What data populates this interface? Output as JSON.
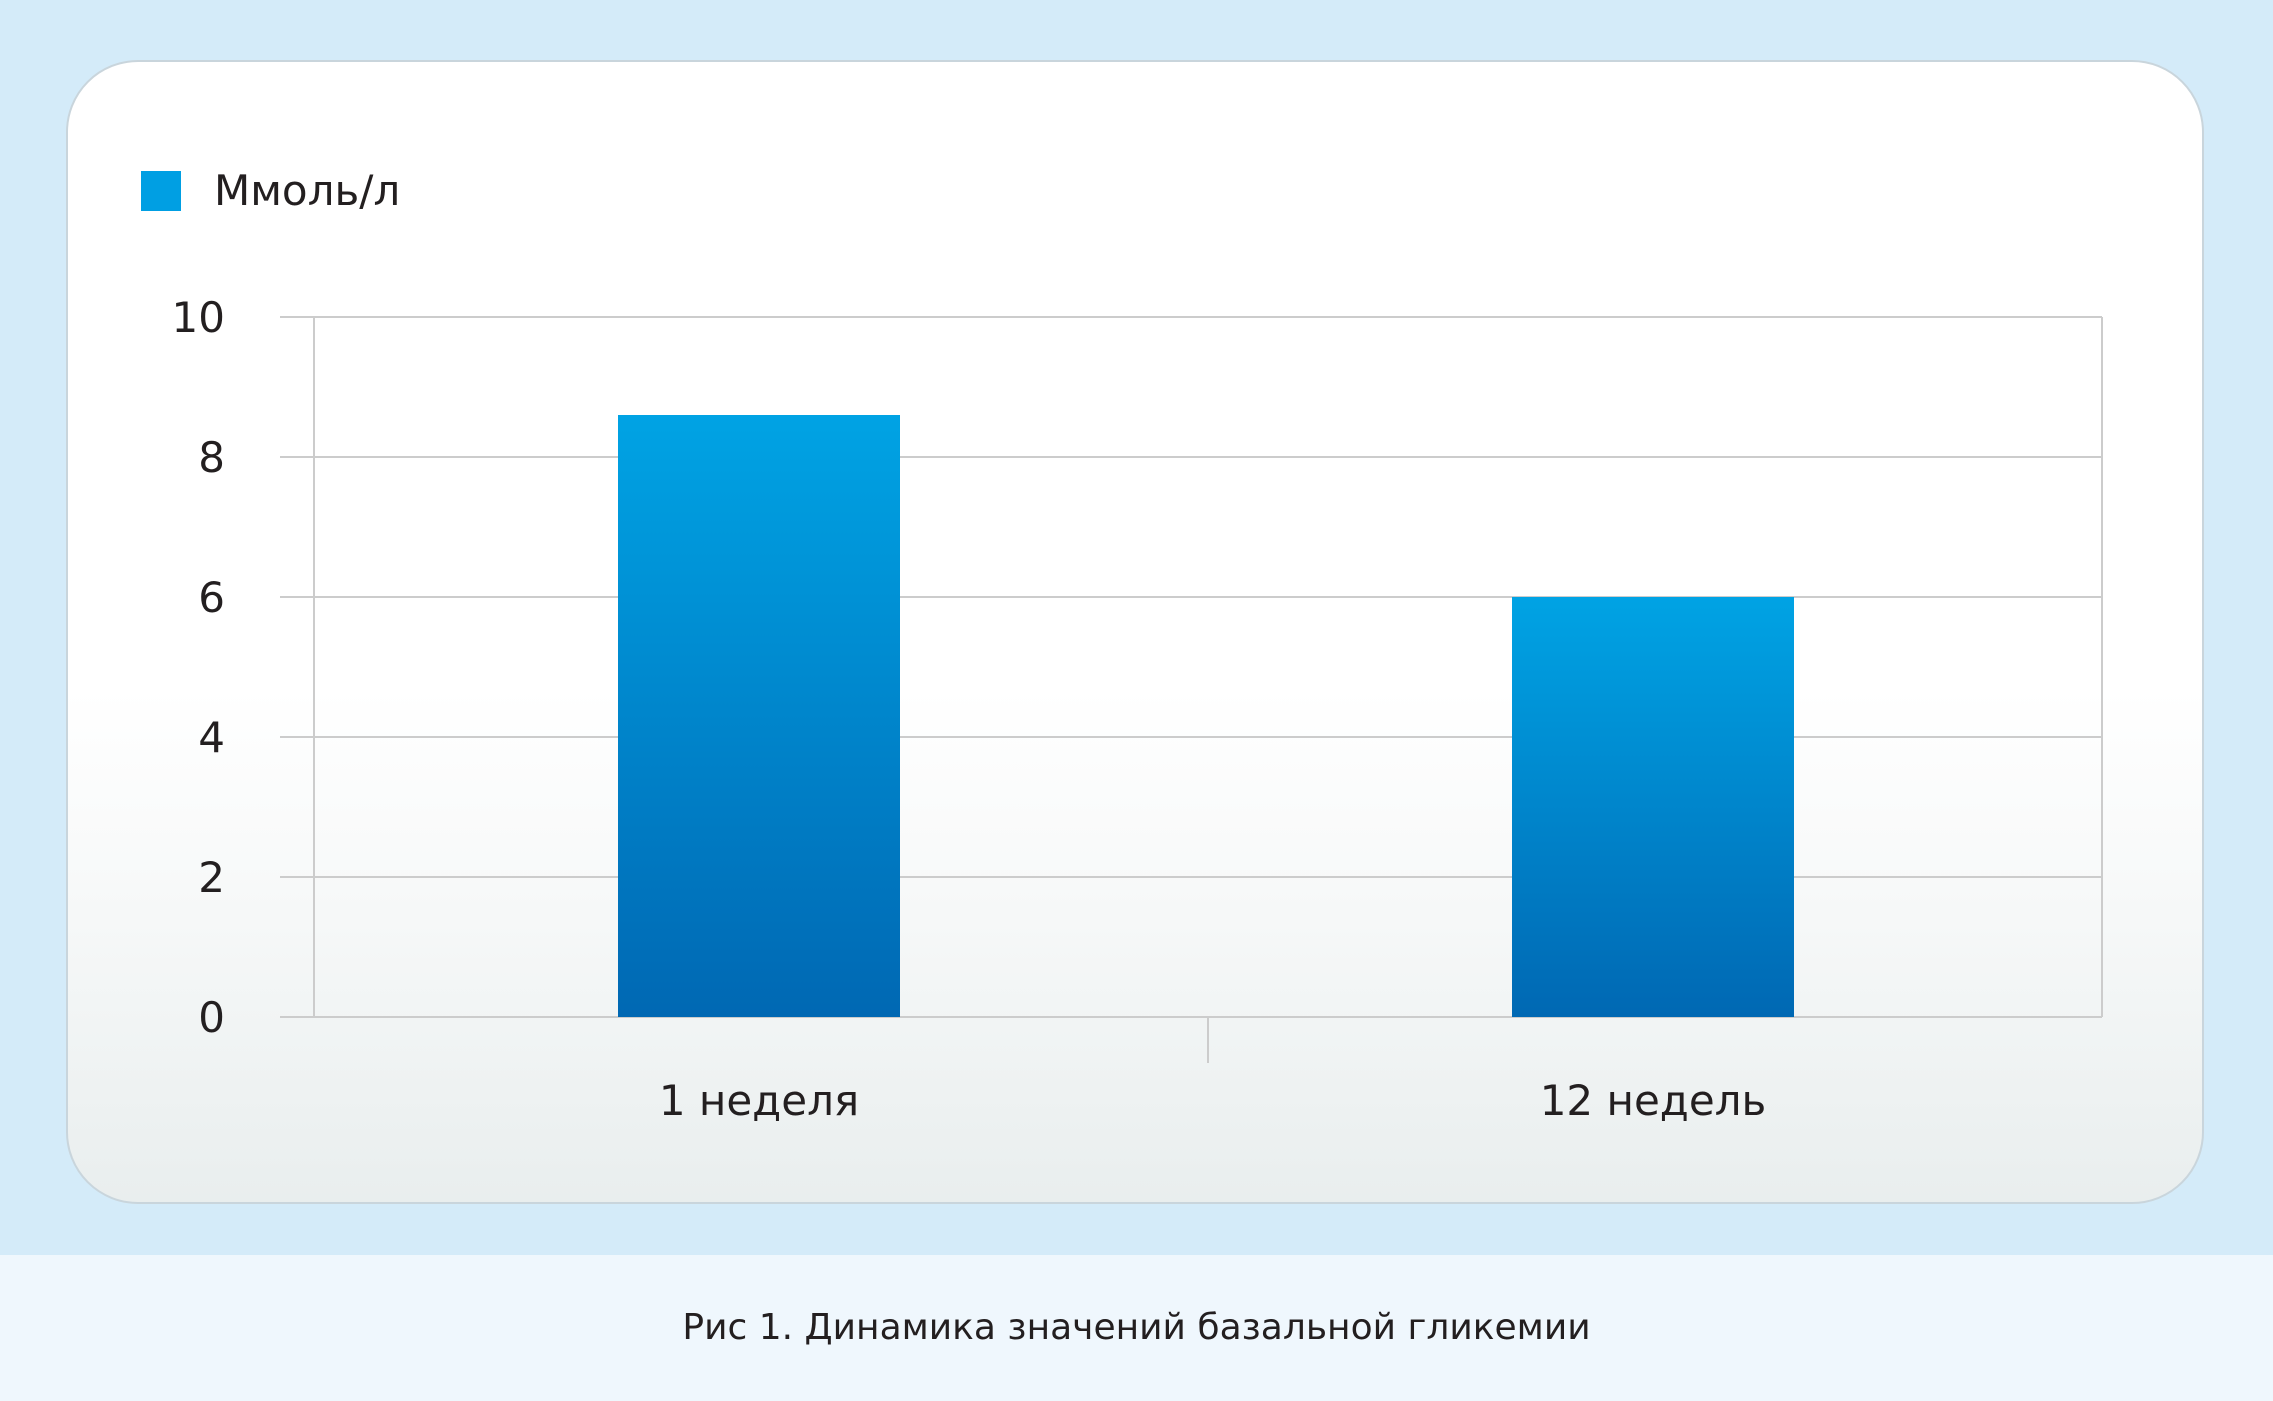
{
  "caption": "Рис 1. Динамика значений базальной гликемии",
  "colors": {
    "bar_top": "#00a3e4",
    "bar_bottom": "#0068b3",
    "legend": "#009fe3",
    "grid": "#cccccc",
    "text": "#231f20"
  },
  "chart_data": {
    "type": "bar",
    "categories": [
      "1 неделя",
      "12 недель"
    ],
    "series": [
      {
        "name": "Ммоль/л",
        "values": [
          8.6,
          6.0
        ]
      }
    ],
    "ylim": [
      0,
      10
    ],
    "yticks": [
      "0",
      "2",
      "4",
      "6",
      "8",
      "10"
    ],
    "grid": true,
    "legend_position": "top-left",
    "title": "",
    "xlabel": "",
    "ylabel": ""
  }
}
